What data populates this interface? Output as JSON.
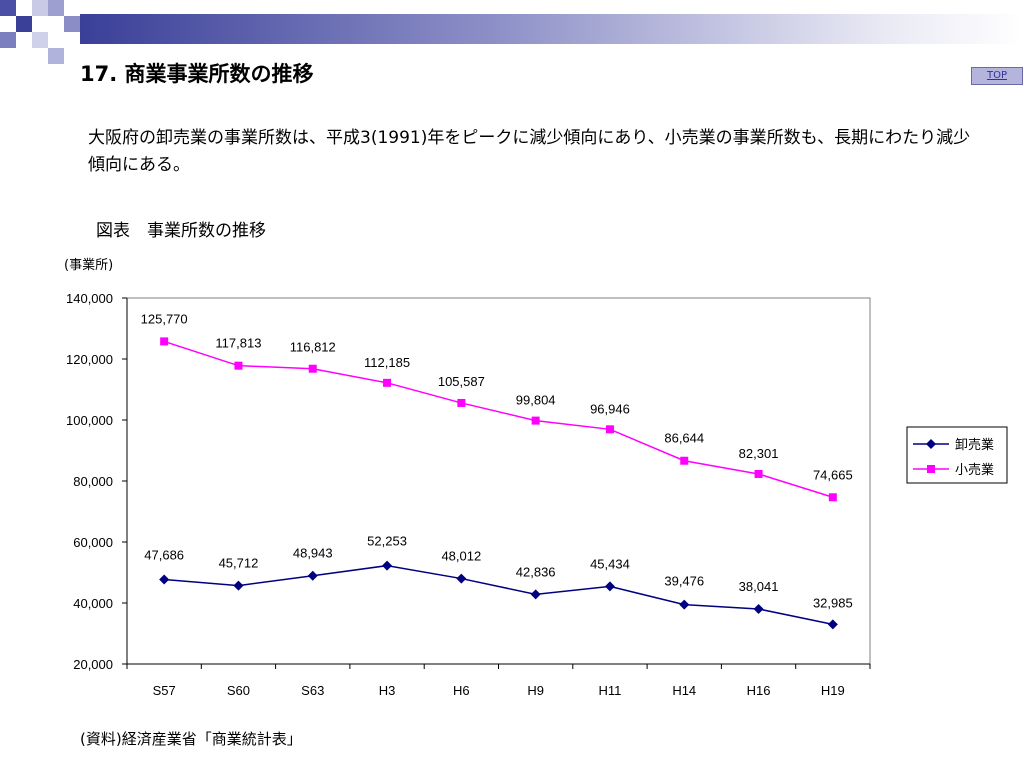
{
  "page": {
    "title": "17. 商業事業所数の推移",
    "top_link": "TOP",
    "description": "大阪府の卸売業の事業所数は、平成3(1991)年をピークに減少傾向にあり、小売業の事業所数も、長期にわたり減少傾向にある。",
    "chart_caption": "図表　事業所数の推移",
    "source_note": "(資料)経済産業省「商業統計表」"
  },
  "chart_data": {
    "type": "line",
    "ylabel": "(事業所)",
    "categories": [
      "S57",
      "S60",
      "S63",
      "H3",
      "H6",
      "H9",
      "H11",
      "H14",
      "H16",
      "H19"
    ],
    "ylim": [
      20000,
      140000
    ],
    "yticks": [
      "20,000",
      "40,000",
      "60,000",
      "80,000",
      "100,000",
      "120,000",
      "140,000"
    ],
    "grid": false,
    "legend_position": "right",
    "series": [
      {
        "name": "卸売業",
        "color": "#000080",
        "marker": "diamond",
        "values": [
          47686,
          45712,
          48943,
          52253,
          48012,
          42836,
          45434,
          39476,
          38041,
          32985
        ],
        "labels": [
          "47,686",
          "45,712",
          "48,943",
          "52,253",
          "48,012",
          "42,836",
          "45,434",
          "39,476",
          "38,041",
          "32,985"
        ]
      },
      {
        "name": "小売業",
        "color": "#ff00ff",
        "marker": "square",
        "values": [
          125770,
          117813,
          116812,
          112185,
          105587,
          99804,
          96946,
          86644,
          82301,
          74665
        ],
        "labels": [
          "125,770",
          "117,813",
          "116,812",
          "112,185",
          "105,587",
          "99,804",
          "96,946",
          "86,644",
          "82,301",
          "74,665"
        ]
      }
    ]
  }
}
